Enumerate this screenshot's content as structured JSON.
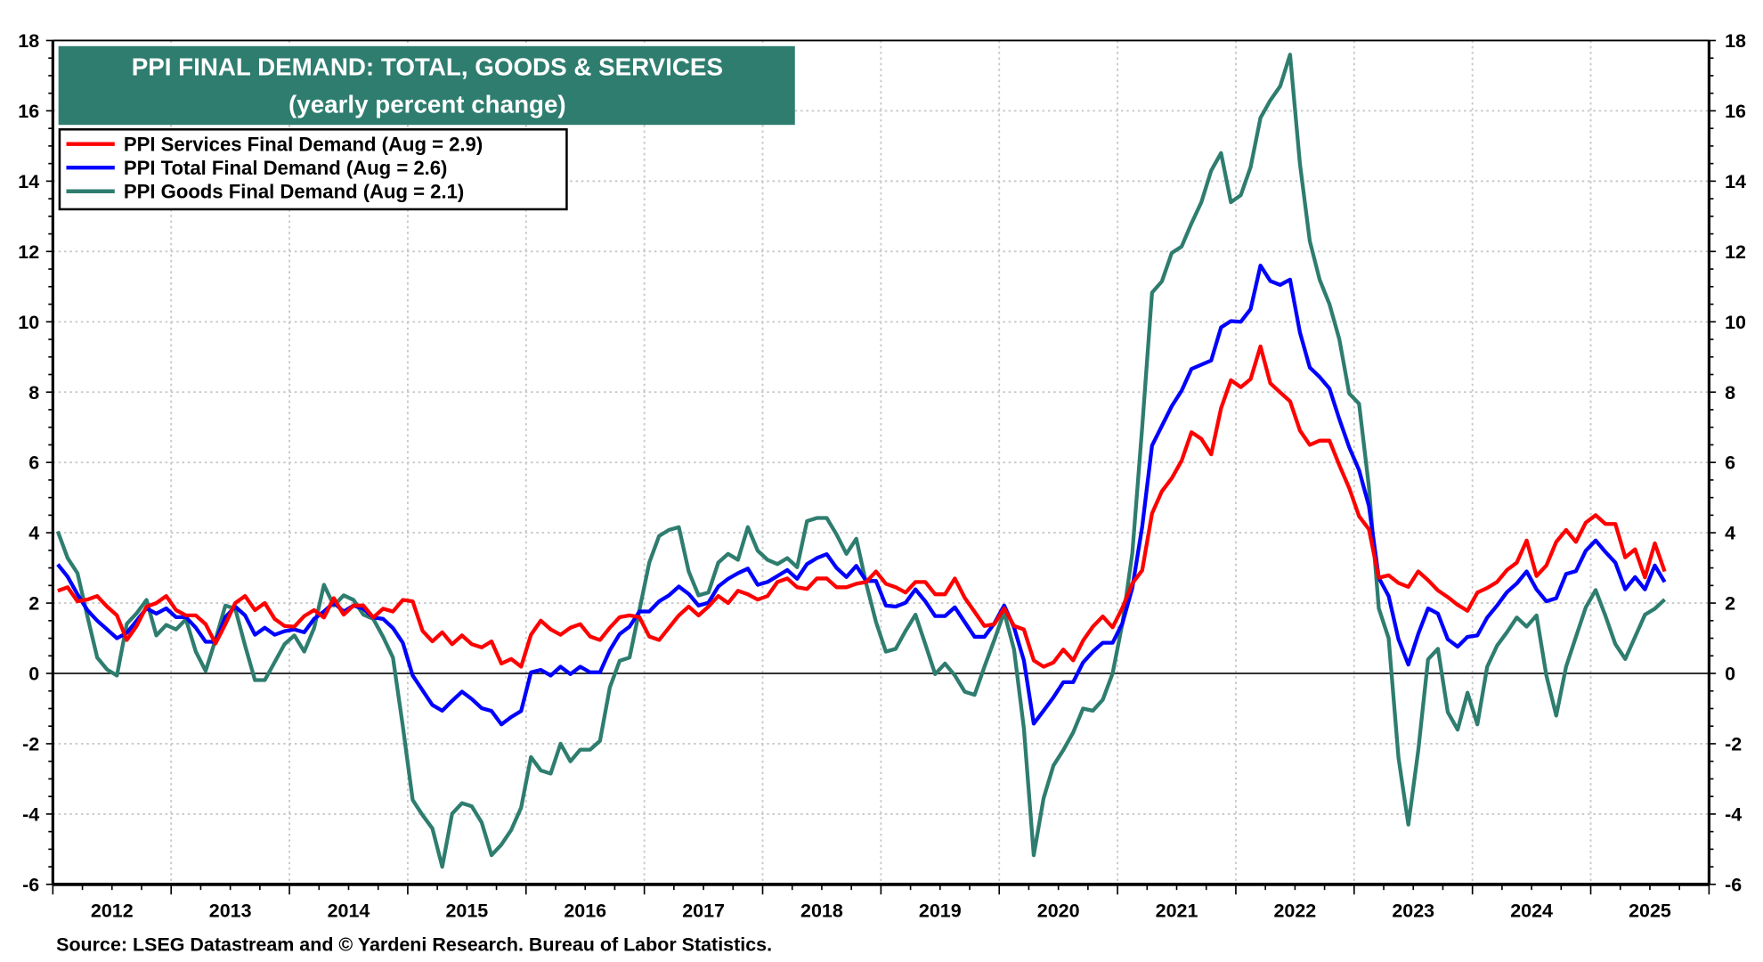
{
  "chart_data": {
    "type": "line",
    "title": "PPI FINAL DEMAND: TOTAL, GOODS & SERVICES",
    "subtitle": "(yearly percent change)",
    "source": "Source: LSEG Datastream and © Yardeni Research. Bureau of Labor Statistics.",
    "frequency": "monthly",
    "xlim": [
      2012,
      2026
    ],
    "ylim": [
      -6,
      18
    ],
    "y_ticks": [
      "-6",
      "-4",
      "-2",
      "0",
      "2",
      "4",
      "6",
      "8",
      "10",
      "12",
      "14",
      "16",
      "18"
    ],
    "x_tick_labels": [
      "2012",
      "2013",
      "2014",
      "2015",
      "2016",
      "2017",
      "2018",
      "2019",
      "2020",
      "2021",
      "2022",
      "2023",
      "2024",
      "2025"
    ],
    "grid": true,
    "dual_y_axis": true,
    "legend_position": "top-left",
    "series": [
      {
        "name": "PPI Services Final Demand (Aug = 2.9)",
        "color": "#ff0000",
        "values_by_year": {
          "2012": [
            2.35,
            2.45,
            2.05,
            2.1,
            2.2,
            1.9,
            1.65,
            0.95,
            1.35,
            1.9,
            2.0,
            2.2
          ],
          "2013": [
            1.8,
            1.65,
            1.65,
            1.4,
            0.85,
            1.4,
            2.0,
            2.2,
            1.8,
            2.0,
            1.55,
            1.35
          ],
          "2014": [
            1.33,
            1.63,
            1.8,
            1.59,
            2.14,
            1.67,
            1.93,
            1.93,
            1.59,
            1.84,
            1.76,
            2.09
          ],
          "2015": [
            2.05,
            1.21,
            0.91,
            1.17,
            0.83,
            1.08,
            0.83,
            0.74,
            0.91,
            0.28,
            0.41,
            0.19
          ],
          "2016": [
            1.1,
            1.5,
            1.25,
            1.1,
            1.3,
            1.4,
            1.05,
            0.95,
            1.3,
            1.6,
            1.65,
            1.6
          ],
          "2017": [
            1.05,
            0.95,
            1.3,
            1.65,
            1.9,
            1.65,
            1.9,
            2.2,
            2.0,
            2.35,
            2.25,
            2.1
          ],
          "2018": [
            2.2,
            2.6,
            2.7,
            2.45,
            2.4,
            2.7,
            2.7,
            2.45,
            2.45,
            2.55,
            2.6,
            2.9
          ],
          "2019": [
            2.55,
            2.45,
            2.3,
            2.6,
            2.6,
            2.25,
            2.25,
            2.7,
            2.15,
            1.75,
            1.35,
            1.4
          ],
          "2020": [
            1.85,
            1.35,
            1.25,
            0.37,
            0.19,
            0.31,
            0.68,
            0.37,
            0.93,
            1.33,
            1.62,
            1.31
          ],
          "2021": [
            1.87,
            2.56,
            2.93,
            4.55,
            5.18,
            5.55,
            6.05,
            6.86,
            6.67,
            6.23,
            7.54,
            8.34
          ],
          "2022": [
            8.14,
            8.37,
            9.3,
            8.25,
            7.99,
            7.74,
            6.91,
            6.5,
            6.62,
            6.62,
            5.92,
            5.27
          ],
          "2023": [
            4.47,
            4.1,
            2.72,
            2.79,
            2.57,
            2.46,
            2.9,
            2.65,
            2.36,
            2.17,
            1.95,
            1.78
          ],
          "2024": [
            2.3,
            2.43,
            2.6,
            2.94,
            3.15,
            3.78,
            2.77,
            3.07,
            3.74,
            4.08,
            3.74,
            4.29
          ],
          "2025": [
            4.5,
            4.25,
            4.25,
            3.3,
            3.53,
            2.73,
            3.7,
            2.9
          ]
        }
      },
      {
        "name": "PPI Total Final Demand (Aug = 2.6)",
        "color": "#0000ff",
        "values_by_year": {
          "2012": [
            3.1,
            2.75,
            2.25,
            1.8,
            1.5,
            1.25,
            1.0,
            1.15,
            1.5,
            1.85,
            1.7,
            1.85
          ],
          "2013": [
            1.6,
            1.6,
            1.3,
            0.9,
            0.9,
            1.6,
            1.9,
            1.65,
            1.1,
            1.3,
            1.1,
            1.2
          ],
          "2014": [
            1.25,
            1.17,
            1.55,
            1.76,
            2.01,
            1.76,
            1.93,
            1.84,
            1.59,
            1.55,
            1.29,
            0.87
          ],
          "2015": [
            -0.06,
            -0.48,
            -0.9,
            -1.06,
            -0.78,
            -0.52,
            -0.73,
            -0.99,
            -1.07,
            -1.45,
            -1.24,
            -1.07
          ],
          "2016": [
            0.03,
            0.1,
            -0.06,
            0.19,
            -0.02,
            0.19,
            0.03,
            0.03,
            0.66,
            1.12,
            1.33,
            1.76
          ],
          "2017": [
            1.76,
            2.05,
            2.22,
            2.47,
            2.26,
            1.93,
            2.01,
            2.47,
            2.69,
            2.85,
            2.98,
            2.52
          ],
          "2018": [
            2.6,
            2.77,
            2.94,
            2.69,
            3.11,
            3.28,
            3.39,
            3.0,
            2.74,
            3.06,
            2.63,
            2.63
          ],
          "2019": [
            1.93,
            1.9,
            2.01,
            2.39,
            2.05,
            1.63,
            1.63,
            1.88,
            1.46,
            1.04,
            1.04,
            1.42
          ],
          "2020": [
            1.93,
            1.31,
            0.37,
            -1.43,
            -1.06,
            -0.68,
            -0.25,
            -0.25,
            0.31,
            0.62,
            0.87,
            0.87
          ],
          "2021": [
            1.43,
            2.43,
            4.17,
            6.48,
            7.04,
            7.6,
            8.04,
            8.66,
            8.78,
            8.9,
            9.84,
            10.02
          ],
          "2022": [
            10.0,
            10.36,
            11.6,
            11.16,
            11.05,
            11.2,
            9.7,
            8.7,
            8.43,
            8.1,
            7.23,
            6.43
          ],
          "2023": [
            5.78,
            4.76,
            2.72,
            2.2,
            0.97,
            0.25,
            1.12,
            1.85,
            1.7,
            0.97,
            0.76,
            1.04
          ],
          "2024": [
            1.08,
            1.59,
            1.93,
            2.31,
            2.56,
            2.9,
            2.39,
            2.05,
            2.14,
            2.83,
            2.91,
            3.49
          ],
          "2025": [
            3.78,
            3.45,
            3.15,
            2.39,
            2.74,
            2.39,
            3.07,
            2.6
          ]
        }
      },
      {
        "name": "PPI Goods Final Demand (Aug = 2.1)",
        "color": "#2e7d6f",
        "values_by_year": {
          "2012": [
            4.04,
            3.28,
            2.85,
            1.63,
            0.45,
            0.11,
            -0.06,
            1.41,
            1.71,
            2.09,
            1.08,
            1.38
          ],
          "2013": [
            1.25,
            1.54,
            0.62,
            0.07,
            0.96,
            1.93,
            1.84,
            0.79,
            -0.19,
            -0.19,
            0.32,
            0.83
          ],
          "2014": [
            1.08,
            0.62,
            1.29,
            2.52,
            1.93,
            2.22,
            2.09,
            1.67,
            1.55,
            1.04,
            0.45,
            -1.5
          ],
          "2015": [
            -3.6,
            -4.03,
            -4.41,
            -5.5,
            -3.99,
            -3.69,
            -3.78,
            -4.24,
            -5.17,
            -4.87,
            -4.45,
            -3.82
          ],
          "2016": [
            -2.38,
            -2.76,
            -2.85,
            -2.0,
            -2.5,
            -2.17,
            -2.17,
            -1.92,
            -0.4,
            0.36,
            0.45,
            1.8
          ],
          "2017": [
            3.15,
            3.91,
            4.08,
            4.16,
            2.9,
            2.22,
            2.3,
            3.15,
            3.4,
            3.23,
            4.16,
            3.49
          ],
          "2018": [
            3.23,
            3.11,
            3.28,
            3.02,
            4.33,
            4.42,
            4.42,
            3.95,
            3.4,
            3.83,
            2.56,
            1.46
          ],
          "2019": [
            0.62,
            0.7,
            1.21,
            1.67,
            0.83,
            -0.02,
            0.28,
            -0.06,
            -0.52,
            -0.61,
            0.19,
            0.95
          ],
          "2020": [
            1.74,
            0.68,
            -1.56,
            -5.17,
            -3.55,
            -2.62,
            -2.18,
            -1.68,
            -1.0,
            -1.06,
            -0.75,
            0.0
          ],
          "2021": [
            1.43,
            3.42,
            7.0,
            10.83,
            11.15,
            11.96,
            12.14,
            12.8,
            13.4,
            14.3,
            14.8,
            13.4
          ],
          "2022": [
            13.6,
            14.4,
            15.8,
            16.3,
            16.7,
            17.6,
            14.5,
            12.3,
            11.2,
            10.5,
            9.5,
            7.96
          ],
          "2023": [
            7.67,
            5.3,
            1.85,
            1.0,
            -2.4,
            -4.3,
            -2.2,
            0.4,
            0.7,
            -1.1,
            -1.6,
            -0.55
          ],
          "2024": [
            -1.45,
            0.19,
            0.79,
            1.17,
            1.59,
            1.33,
            1.65,
            -0.06,
            -1.2,
            0.19,
            1.04,
            1.88
          ],
          "2025": [
            2.37,
            1.63,
            0.83,
            0.41,
            1.04,
            1.67,
            1.84,
            2.1
          ]
        }
      }
    ]
  },
  "colors": {
    "title_box": "#2e7d6f",
    "grid": "#c8c8c8",
    "axis": "#000000"
  }
}
